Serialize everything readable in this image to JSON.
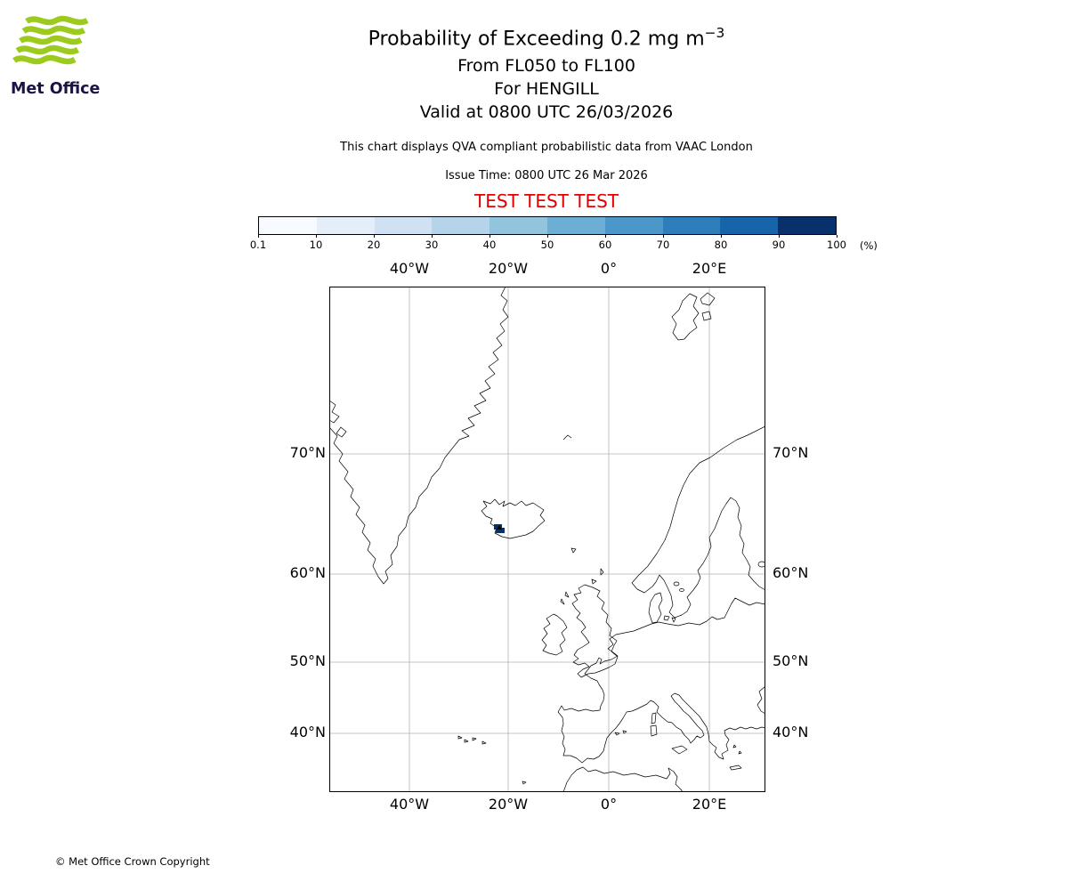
{
  "brand": {
    "name": "Met Office",
    "logo_green": "#9ccb1e"
  },
  "header": {
    "title": "Probability of Exceeding 0.2 mg m",
    "title_sup": "−3",
    "flight_levels": "From FL050 to FL100",
    "volcano": "For HENGILL",
    "valid_time": "Valid at 0800 UTC 26/03/2026",
    "note": "This chart displays QVA compliant probabilistic data from VAAC London",
    "issue_time": "Issue Time: 0800 UTC 26 Mar 2026",
    "test_banner": "TEST TEST TEST",
    "test_banner_color": "#e00000"
  },
  "colorbar": {
    "ticks": [
      "0.1",
      "10",
      "20",
      "30",
      "40",
      "50",
      "60",
      "70",
      "80",
      "90",
      "100"
    ],
    "unit": "(%)",
    "colors": [
      "#f7fbff",
      "#e3eef9",
      "#cfe1f2",
      "#b5d4e9",
      "#93c4de",
      "#6daed5",
      "#4b97c9",
      "#2f7ebc",
      "#1864aa",
      "#08306b"
    ]
  },
  "map": {
    "lon_labels": [
      "40°W",
      "20°W",
      "0°",
      "20°E"
    ],
    "lat_labels": [
      "70°N",
      "60°N",
      "50°N",
      "40°N"
    ],
    "hazard_color": "#08306b"
  },
  "footer": {
    "copyright": "© Met Office Crown Copyright"
  },
  "chart_data": {
    "type": "map",
    "title": "Probability of Exceeding 0.2 mg m⁻³",
    "layer": "From FL050 to FL100",
    "source_volcano": "HENGILL",
    "valid": "Valid at 0800 UTC 26/03/2026",
    "issue_time": "0800 UTC 26 Mar 2026",
    "provider": "VAAC London",
    "legend_percent_levels": [
      0.1,
      10,
      20,
      30,
      40,
      50,
      60,
      70,
      80,
      90,
      100
    ],
    "legend_unit": "%",
    "grid_longitudes": [
      "40°W",
      "20°W",
      "0°",
      "20°E"
    ],
    "grid_latitudes": [
      "70°N",
      "60°N",
      "50°N",
      "40°N"
    ],
    "features": [
      {
        "name": "probability-contour",
        "location": "southwest Iceland near Hengill",
        "value_percent_bin": "90–100"
      }
    ]
  }
}
